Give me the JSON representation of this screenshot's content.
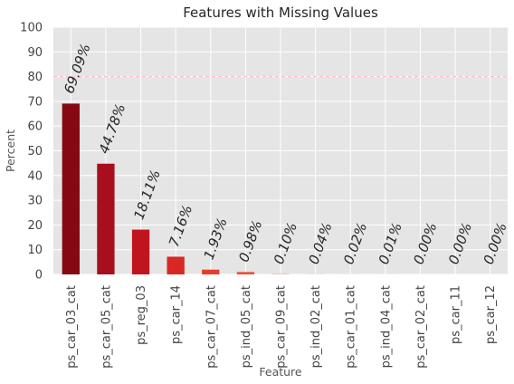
{
  "chart_data": {
    "type": "bar",
    "title": "Features with Missing Values",
    "xlabel": "Feature",
    "ylabel": "Percent",
    "ylim": [
      0,
      100
    ],
    "yticks": [
      "0",
      "10",
      "20",
      "30",
      "40",
      "50",
      "60",
      "70",
      "80",
      "90",
      "100"
    ],
    "grid": true,
    "reference_line": {
      "y": 80,
      "style": "dashed",
      "color": "#ffc0cb"
    },
    "categories": [
      "ps_car_03_cat",
      "ps_car_05_cat",
      "ps_reg_03",
      "ps_car_14",
      "ps_car_07_cat",
      "ps_ind_05_cat",
      "ps_car_09_cat",
      "ps_ind_02_cat",
      "ps_car_01_cat",
      "ps_ind_04_cat",
      "ps_car_02_cat",
      "ps_car_11",
      "ps_car_12"
    ],
    "values": [
      69.09,
      44.78,
      18.11,
      7.16,
      1.93,
      0.98,
      0.1,
      0.04,
      0.02,
      0.01,
      0.0,
      0.0,
      0.0
    ],
    "data_labels": [
      "69.09%",
      "44.78%",
      "18.11%",
      "7.16%",
      "1.93%",
      "0.98%",
      "0.10%",
      "0.04%",
      "0.02%",
      "0.01%",
      "0.00%",
      "0.00%",
      "0.00%"
    ],
    "bar_colors": [
      "#860811",
      "#a80f1c",
      "#c0151f",
      "#d92724",
      "#e83b2c",
      "#f24d35",
      "#f55b3e",
      "#f76844",
      "#f8744b",
      "#f98051",
      "#fa8b58",
      "#fb965f",
      "#fba166"
    ],
    "background_color": "#e5e5e5",
    "grid_color": "#ffffff"
  }
}
